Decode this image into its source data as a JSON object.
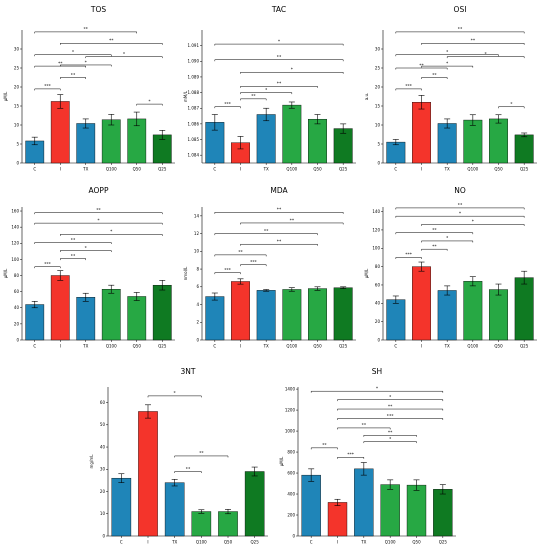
{
  "colors": {
    "C": "#1f85b8",
    "I": "#f4342b",
    "TX": "#1f85b8",
    "Q100": "#27a844",
    "Q50": "#27a844",
    "Q25": "#0f7a22",
    "error": "#000000",
    "bracket": "#000000"
  },
  "chart_data": [
    {
      "type": "bar",
      "title": "TOS",
      "ylabel": "µM/L",
      "categories": [
        "C",
        "I",
        "TX",
        "Q100",
        "Q50",
        "Q25"
      ],
      "values": [
        5.8,
        16.2,
        10.4,
        11.4,
        11.6,
        7.4
      ],
      "errors": [
        1.0,
        1.8,
        1.2,
        1.4,
        1.8,
        1.2
      ],
      "ylim": [
        0,
        35
      ],
      "yticks": [
        0,
        5,
        10,
        15,
        20,
        25,
        30
      ],
      "ytick_labels": [
        "0",
        "5",
        "10",
        "15",
        "20",
        "25",
        "30"
      ],
      "significance": [
        {
          "from": 0,
          "to": 1,
          "label": "***",
          "y": 19.5
        },
        {
          "from": 1,
          "to": 2,
          "label": "**",
          "y": 22.5
        },
        {
          "from": 0,
          "to": 2,
          "label": "**",
          "y": 25.5
        },
        {
          "from": 1,
          "to": 3,
          "label": "*",
          "y": 25.8
        },
        {
          "from": 0,
          "to": 3,
          "label": "*",
          "y": 28.5
        },
        {
          "from": 1,
          "to": 5,
          "label": "**",
          "y": 31.5
        },
        {
          "from": 0,
          "to": 4,
          "label": "**",
          "y": 34.5
        },
        {
          "from": 2,
          "to": 5,
          "label": "*",
          "y": 28.0
        },
        {
          "from": 4,
          "to": 5,
          "label": "*",
          "y": 15.5
        }
      ]
    },
    {
      "type": "bar",
      "title": "TAC",
      "ylabel": "mM/L",
      "categories": [
        "C",
        "I",
        "TX",
        "Q100",
        "Q50",
        "Q25"
      ],
      "values": [
        1.0861,
        1.0848,
        1.0866,
        1.0872,
        1.0863,
        1.0857
      ],
      "errors": [
        0.0005,
        0.0004,
        0.0004,
        0.0002,
        0.0003,
        0.0003
      ],
      "ylim": [
        1.0835,
        1.092
      ],
      "yticks": [
        1.084,
        1.085,
        1.086,
        1.087,
        1.088,
        1.089,
        1.09,
        1.091
      ],
      "ytick_labels": [
        "1.084",
        "1.085",
        "1.086",
        "1.087",
        "1.088",
        "1.089",
        "1.090",
        "1.091"
      ],
      "significance": [
        {
          "from": 0,
          "to": 1,
          "label": "***",
          "y": 1.0871
        },
        {
          "from": 1,
          "to": 2,
          "label": "**",
          "y": 1.0876
        },
        {
          "from": 1,
          "to": 3,
          "label": "*",
          "y": 1.088
        },
        {
          "from": 1,
          "to": 4,
          "label": "**",
          "y": 1.0884
        },
        {
          "from": 1,
          "to": 5,
          "label": "*",
          "y": 1.0893
        },
        {
          "from": 0,
          "to": 5,
          "label": "**",
          "y": 1.0901
        },
        {
          "from": 0,
          "to": 5,
          "label": "*",
          "y": 1.0911
        }
      ]
    },
    {
      "type": "bar",
      "title": "OSI",
      "ylabel": "a.u.",
      "categories": [
        "C",
        "I",
        "TX",
        "Q100",
        "Q50",
        "Q25"
      ],
      "values": [
        5.5,
        16.0,
        10.4,
        11.3,
        11.6,
        7.4
      ],
      "errors": [
        0.7,
        1.8,
        1.2,
        1.4,
        1.1,
        0.5
      ],
      "ylim": [
        0,
        35
      ],
      "yticks": [
        0,
        5,
        10,
        15,
        20,
        25,
        30
      ],
      "ytick_labels": [
        "0",
        "5",
        "10",
        "15",
        "20",
        "25",
        "30"
      ],
      "significance": [
        {
          "from": 0,
          "to": 1,
          "label": "***",
          "y": 19.5
        },
        {
          "from": 1,
          "to": 2,
          "label": "**",
          "y": 22.5
        },
        {
          "from": 0,
          "to": 2,
          "label": "**",
          "y": 25.0
        },
        {
          "from": 1,
          "to": 3,
          "label": "*",
          "y": 25.5
        },
        {
          "from": 0,
          "to": 4,
          "label": "*",
          "y": 28.5
        },
        {
          "from": 1,
          "to": 5,
          "label": "**",
          "y": 31.5
        },
        {
          "from": 0,
          "to": 5,
          "label": "**",
          "y": 34.5
        },
        {
          "from": 2,
          "to": 5,
          "label": "*",
          "y": 28.0
        },
        {
          "from": 4,
          "to": 5,
          "label": "*",
          "y": 14.8
        }
      ]
    },
    {
      "type": "bar",
      "title": "AOPP",
      "ylabel": "µM/L",
      "categories": [
        "C",
        "I",
        "TX",
        "Q100",
        "Q50",
        "Q25"
      ],
      "values": [
        44,
        80,
        53,
        63,
        54,
        68
      ],
      "errors": [
        4,
        6,
        5,
        5,
        5,
        6
      ],
      "ylim": [
        0,
        165
      ],
      "yticks": [
        0,
        20,
        40,
        60,
        80,
        100,
        120,
        140,
        160
      ],
      "ytick_labels": [
        "0",
        "20",
        "40",
        "60",
        "80",
        "100",
        "120",
        "140",
        "160"
      ],
      "significance": [
        {
          "from": 0,
          "to": 1,
          "label": "***",
          "y": 91
        },
        {
          "from": 1,
          "to": 2,
          "label": "**",
          "y": 101
        },
        {
          "from": 1,
          "to": 3,
          "label": "*",
          "y": 111
        },
        {
          "from": 0,
          "to": 3,
          "label": "**",
          "y": 121
        },
        {
          "from": 1,
          "to": 5,
          "label": "*",
          "y": 131
        },
        {
          "from": 0,
          "to": 5,
          "label": "*",
          "y": 145
        },
        {
          "from": 0,
          "to": 5,
          "label": "**",
          "y": 158
        }
      ]
    },
    {
      "type": "bar",
      "title": "MDA",
      "ylabel": "nmol/L",
      "categories": [
        "C",
        "I",
        "TX",
        "Q100",
        "Q50",
        "Q25"
      ],
      "values": [
        4.9,
        6.6,
        5.6,
        5.7,
        5.8,
        5.9
      ],
      "errors": [
        0.4,
        0.3,
        0.1,
        0.2,
        0.2,
        0.1
      ],
      "ylim": [
        0,
        15
      ],
      "yticks": [
        0,
        2,
        4,
        6,
        8,
        10,
        12,
        14
      ],
      "ytick_labels": [
        "0",
        "2",
        "4",
        "6",
        "8",
        "10",
        "12",
        "14"
      ],
      "significance": [
        {
          "from": 0,
          "to": 1,
          "label": "***",
          "y": 7.6
        },
        {
          "from": 1,
          "to": 2,
          "label": "***",
          "y": 8.5
        },
        {
          "from": 0,
          "to": 2,
          "label": "**",
          "y": 9.6
        },
        {
          "from": 1,
          "to": 4,
          "label": "**",
          "y": 10.8
        },
        {
          "from": 0,
          "to": 4,
          "label": "**",
          "y": 12.0
        },
        {
          "from": 1,
          "to": 5,
          "label": "**",
          "y": 13.2
        },
        {
          "from": 0,
          "to": 5,
          "label": "**",
          "y": 14.4
        }
      ]
    },
    {
      "type": "bar",
      "title": "NO",
      "ylabel": "µM/L",
      "categories": [
        "C",
        "I",
        "TX",
        "Q100",
        "Q50",
        "Q25"
      ],
      "values": [
        44,
        80,
        54,
        64,
        55,
        68
      ],
      "errors": [
        4,
        5,
        5,
        5,
        6,
        7
      ],
      "ylim": [
        0,
        145
      ],
      "yticks": [
        0,
        20,
        40,
        60,
        80,
        100,
        120,
        140
      ],
      "ytick_labels": [
        "0",
        "20",
        "40",
        "60",
        "80",
        "100",
        "120",
        "140"
      ],
      "significance": [
        {
          "from": 0,
          "to": 1,
          "label": "***",
          "y": 90
        },
        {
          "from": 1,
          "to": 2,
          "label": "**",
          "y": 99
        },
        {
          "from": 1,
          "to": 3,
          "label": "*",
          "y": 108
        },
        {
          "from": 0,
          "to": 3,
          "label": "**",
          "y": 117
        },
        {
          "from": 1,
          "to": 5,
          "label": "*",
          "y": 126
        },
        {
          "from": 0,
          "to": 5,
          "label": "*",
          "y": 135
        },
        {
          "from": 0,
          "to": 5,
          "label": "**",
          "y": 144
        }
      ]
    },
    {
      "type": "bar",
      "title": "3NT",
      "ylabel": "mg/mL",
      "categories": [
        "C",
        "I",
        "TX",
        "Q100",
        "Q50",
        "Q25"
      ],
      "values": [
        26,
        56,
        24,
        11,
        11,
        29
      ],
      "errors": [
        2,
        3,
        1.5,
        0.8,
        1,
        2
      ],
      "ylim": [
        0,
        67
      ],
      "yticks": [
        0,
        10,
        20,
        30,
        40,
        50,
        60
      ],
      "ytick_labels": [
        "0",
        "10",
        "20",
        "30",
        "40",
        "50",
        "60"
      ],
      "significance": [
        {
          "from": 2,
          "to": 3,
          "label": "**",
          "y": 29
        },
        {
          "from": 2,
          "to": 4,
          "label": "**",
          "y": 36
        },
        {
          "from": 1,
          "to": 3,
          "label": "*",
          "y": 63
        }
      ]
    },
    {
      "type": "bar",
      "title": "SH",
      "ylabel": "µM/L",
      "categories": [
        "C",
        "I",
        "TX",
        "Q100",
        "Q50",
        "Q25"
      ],
      "values": [
        580,
        320,
        640,
        490,
        485,
        445
      ],
      "errors": [
        60,
        30,
        60,
        45,
        50,
        45
      ],
      "ylim": [
        0,
        1420
      ],
      "yticks": [
        0,
        200,
        400,
        600,
        800,
        1000,
        1200,
        1400
      ],
      "ytick_labels": [
        "0",
        "200",
        "400",
        "600",
        "800",
        "1000",
        "1200",
        "1400"
      ],
      "significance": [
        {
          "from": 0,
          "to": 1,
          "label": "**",
          "y": 840
        },
        {
          "from": 1,
          "to": 2,
          "label": "***",
          "y": 750
        },
        {
          "from": 2,
          "to": 4,
          "label": "*",
          "y": 900
        },
        {
          "from": 1,
          "to": 3,
          "label": "**",
          "y": 1030
        },
        {
          "from": 2,
          "to": 4,
          "label": "**",
          "y": 960
        },
        {
          "from": 1,
          "to": 5,
          "label": "***",
          "y": 1120
        },
        {
          "from": 1,
          "to": 5,
          "label": "**",
          "y": 1210
        },
        {
          "from": 1,
          "to": 5,
          "label": "*",
          "y": 1300
        },
        {
          "from": 0,
          "to": 5,
          "label": "*",
          "y": 1380
        }
      ]
    }
  ]
}
